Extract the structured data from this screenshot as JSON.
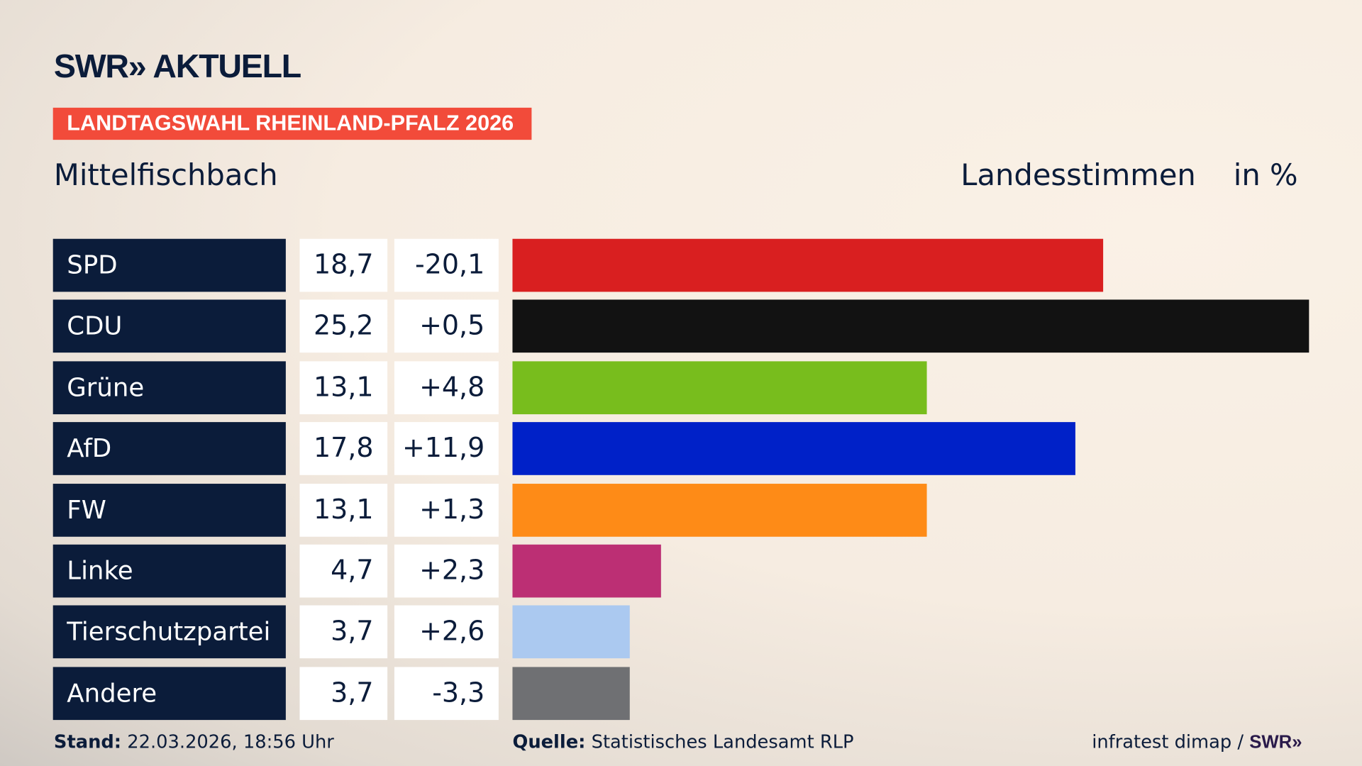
{
  "brand": {
    "logo": "SWR» AKTUELL",
    "footer_logo": "SWR»"
  },
  "badge": "LANDTAGSWAHL RHEINLAND-PFALZ 2026",
  "region": "Mittelfischbach",
  "header": {
    "label": "Landesstimmen",
    "unit": "in %"
  },
  "chart_data": {
    "type": "bar",
    "orientation": "horizontal",
    "categories": [
      "SPD",
      "CDU",
      "Grüne",
      "AfD",
      "FW",
      "Linke",
      "Tierschutzpartei",
      "Andere"
    ],
    "values": [
      18.7,
      25.2,
      13.1,
      17.8,
      13.1,
      4.7,
      3.7,
      3.7
    ],
    "value_labels": [
      "18,7",
      "25,2",
      "13,1",
      "17,8",
      "13,1",
      "4,7",
      "3,7",
      "3,7"
    ],
    "diff_labels": [
      "-20,1",
      "+0,5",
      "+4,8",
      "+11,9",
      "+1,3",
      "+2,3",
      "+2,6",
      "-3,3"
    ],
    "colors": [
      "#d91f20",
      "#121212",
      "#78bd1d",
      "#0021c8",
      "#fe8b17",
      "#bc2f74",
      "#abc9f0",
      "#6f7073"
    ],
    "xlim": [
      0,
      25.2
    ]
  },
  "footer": {
    "stand_label": "Stand:",
    "stand": "22.03.2026, 18:56 Uhr",
    "source_label": "Quelle:",
    "source": "Statistisches Landesamt RLP",
    "credit": "infratest dimap /"
  }
}
